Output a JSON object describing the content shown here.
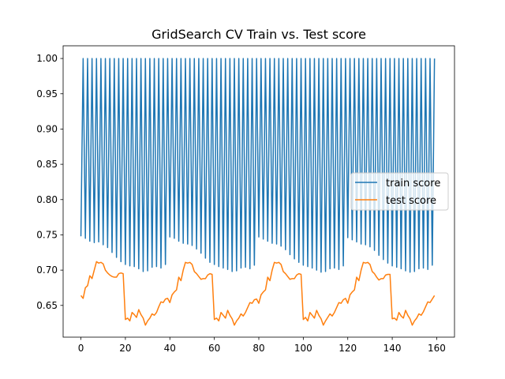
{
  "chart_data": {
    "type": "line",
    "title": "GridSearch CV Train vs. Test score",
    "xlabel": "",
    "ylabel": "",
    "xlim": [
      -8,
      168
    ],
    "ylim": [
      0.605,
      1.018
    ],
    "xticks": [
      0,
      20,
      40,
      60,
      80,
      100,
      120,
      140,
      160
    ],
    "yticks": [
      0.65,
      0.7,
      0.75,
      0.8,
      0.85,
      0.9,
      0.95,
      1.0
    ],
    "ytick_labels": [
      "0.65",
      "0.70",
      "0.75",
      "0.80",
      "0.85",
      "0.90",
      "0.95",
      "1.00"
    ],
    "grid": false,
    "legend_position": "center-right",
    "series": [
      {
        "name": "train score",
        "color": "#1f77b4",
        "values": [
          0.748,
          1.0,
          0.745,
          1.0,
          0.741,
          1.0,
          0.739,
          1.0,
          0.74,
          1.0,
          0.736,
          1.0,
          0.732,
          1.0,
          0.725,
          1.0,
          0.718,
          1.0,
          0.712,
          1.0,
          0.708,
          1.0,
          0.706,
          1.0,
          0.705,
          1.0,
          0.702,
          1.0,
          0.698,
          1.0,
          0.699,
          1.0,
          0.704,
          1.0,
          0.705,
          1.0,
          0.703,
          1.0,
          0.708,
          1.0,
          0.747,
          1.0,
          0.745,
          1.0,
          0.741,
          1.0,
          0.738,
          1.0,
          0.737,
          1.0,
          0.735,
          1.0,
          0.73,
          1.0,
          0.724,
          1.0,
          0.717,
          1.0,
          0.711,
          1.0,
          0.708,
          1.0,
          0.705,
          1.0,
          0.703,
          1.0,
          0.701,
          1.0,
          0.698,
          1.0,
          0.699,
          1.0,
          0.703,
          1.0,
          0.704,
          1.0,
          0.702,
          1.0,
          0.707,
          1.0,
          0.747,
          1.0,
          0.744,
          1.0,
          0.741,
          1.0,
          0.738,
          1.0,
          0.737,
          1.0,
          0.734,
          1.0,
          0.729,
          1.0,
          0.722,
          1.0,
          0.716,
          1.0,
          0.711,
          1.0,
          0.707,
          1.0,
          0.705,
          1.0,
          0.703,
          1.0,
          0.7,
          1.0,
          0.697,
          1.0,
          0.698,
          1.0,
          0.702,
          1.0,
          0.703,
          1.0,
          0.701,
          1.0,
          0.706,
          1.0,
          0.746,
          1.0,
          0.743,
          1.0,
          0.74,
          1.0,
          0.737,
          1.0,
          0.736,
          1.0,
          0.733,
          1.0,
          0.728,
          1.0,
          0.721,
          1.0,
          0.715,
          1.0,
          0.71,
          1.0,
          0.706,
          1.0,
          0.704,
          1.0,
          0.702,
          1.0,
          0.699,
          1.0,
          0.697,
          1.0,
          0.698,
          1.0,
          0.702,
          1.0,
          0.703,
          1.0,
          0.701,
          1.0,
          0.707,
          1.0
        ]
      },
      {
        "name": "test score",
        "color": "#ff7f0e",
        "values": [
          0.664,
          0.66,
          0.675,
          0.678,
          0.692,
          0.688,
          0.7,
          0.712,
          0.71,
          0.711,
          0.709,
          0.7,
          0.696,
          0.693,
          0.691,
          0.69,
          0.69,
          0.695,
          0.696,
          0.695,
          0.63,
          0.632,
          0.628,
          0.64,
          0.637,
          0.633,
          0.644,
          0.637,
          0.632,
          0.622,
          0.628,
          0.632,
          0.638,
          0.636,
          0.64,
          0.648,
          0.655,
          0.654,
          0.659,
          0.66,
          0.654,
          0.665,
          0.669,
          0.672,
          0.69,
          0.685,
          0.7,
          0.711,
          0.71,
          0.711,
          0.708,
          0.698,
          0.695,
          0.691,
          0.687,
          0.688,
          0.688,
          0.693,
          0.695,
          0.694,
          0.63,
          0.632,
          0.628,
          0.64,
          0.636,
          0.632,
          0.643,
          0.636,
          0.631,
          0.622,
          0.628,
          0.632,
          0.638,
          0.635,
          0.64,
          0.647,
          0.654,
          0.653,
          0.658,
          0.659,
          0.653,
          0.665,
          0.669,
          0.672,
          0.69,
          0.685,
          0.7,
          0.711,
          0.71,
          0.711,
          0.708,
          0.698,
          0.695,
          0.691,
          0.687,
          0.688,
          0.688,
          0.693,
          0.695,
          0.694,
          0.63,
          0.633,
          0.628,
          0.64,
          0.636,
          0.632,
          0.643,
          0.636,
          0.631,
          0.622,
          0.628,
          0.633,
          0.638,
          0.635,
          0.64,
          0.647,
          0.654,
          0.653,
          0.658,
          0.66,
          0.653,
          0.665,
          0.669,
          0.672,
          0.69,
          0.685,
          0.7,
          0.711,
          0.71,
          0.711,
          0.708,
          0.698,
          0.695,
          0.69,
          0.686,
          0.688,
          0.688,
          0.693,
          0.694,
          0.694,
          0.631,
          0.632,
          0.629,
          0.64,
          0.635,
          0.632,
          0.643,
          0.636,
          0.631,
          0.622,
          0.628,
          0.632,
          0.638,
          0.636,
          0.641,
          0.648,
          0.655,
          0.654,
          0.659,
          0.664
        ]
      }
    ]
  }
}
